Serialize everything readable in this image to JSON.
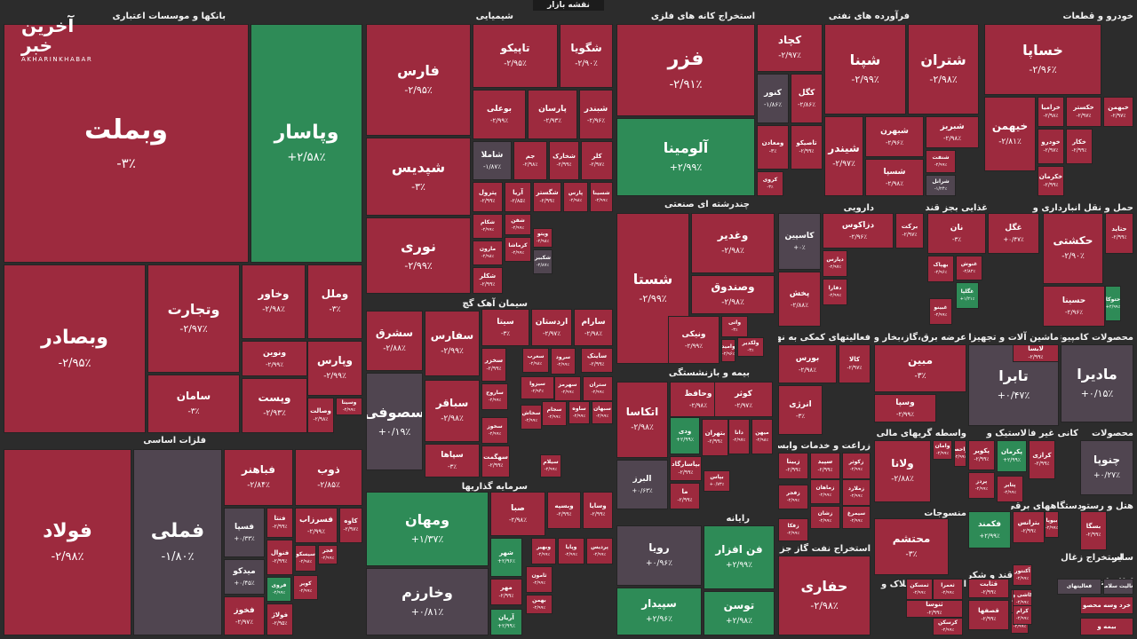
{
  "map_title": "نقشه بازار",
  "logo": {
    "main": "آخرین خبر",
    "sub": "AKHARINKHABAR"
  },
  "colors": {
    "neg": "#9d2a3e",
    "pos": "#2e8b57",
    "neutral": "#504550",
    "bg": "#2c2c2c"
  },
  "sectors": [
    {
      "id": "banks",
      "title": "بانکها و موسسات اعتباری"
    },
    {
      "id": "chem",
      "title": "شیمیایی"
    },
    {
      "id": "metalore",
      "title": "استخراج کانه های فلزی"
    },
    {
      "id": "oil",
      "title": "فرآورده های نفتی"
    },
    {
      "id": "auto",
      "title": "خودرو و قطعات"
    },
    {
      "id": "basicmetals",
      "title": "فلزات اساسی"
    },
    {
      "id": "multi",
      "title": "چندرشته ای صنعتی"
    },
    {
      "id": "pharma",
      "title": "دارویی"
    },
    {
      "id": "food",
      "title": "غذایی بجز قند وشکر"
    },
    {
      "id": "transport",
      "title": "حمل و نقل انبارداری و"
    },
    {
      "id": "cement",
      "title": "سیمان آهک گچ"
    },
    {
      "id": "finaid",
      "title": "فعالیتهای کمکی به نهاد های"
    },
    {
      "id": "utility",
      "title": "عرضه برق،گاز،بخار و آب گرم"
    },
    {
      "id": "machinery",
      "title": "ماشین آلات و تجهیزات"
    },
    {
      "id": "computer",
      "title": "محصولات کامپیوتری"
    },
    {
      "id": "insurance",
      "title": "بیمه و بازنشستگی"
    },
    {
      "id": "invest",
      "title": "سرمایه گذاریها"
    },
    {
      "id": "services",
      "title": "زراعت و خدمات وابسته"
    },
    {
      "id": "brokers",
      "title": "واسطه گریهای مالی و پولی"
    },
    {
      "id": "tire",
      "title": "لاستیک و"
    },
    {
      "id": "nonmetal",
      "title": "کانی غیر فلزی"
    },
    {
      "id": "products",
      "title": "محصولات"
    },
    {
      "id": "textile",
      "title": "منسوجات"
    },
    {
      "id": "electric",
      "title": "دستگاههای برقی"
    },
    {
      "id": "hotel",
      "title": "هتل و رستوران"
    },
    {
      "id": "it",
      "title": "رایانه"
    },
    {
      "id": "oilgas",
      "title": "استخراج نفت گاز جز اکتشاف"
    },
    {
      "id": "mass",
      "title": "انبوه سازی املاک و"
    },
    {
      "id": "sugar",
      "title": "قند و شکر"
    },
    {
      "id": "coal",
      "title": "استخراج زغال"
    },
    {
      "id": "telecom",
      "title": "اطلاعات و"
    },
    {
      "id": "misc",
      "title": "سایر"
    }
  ],
  "stocks": [
    {
      "name": "وبملت",
      "change": "-۳٪"
    },
    {
      "name": "وپاسار",
      "change": "+۲/۵۸٪"
    },
    {
      "name": "وبصادر",
      "change": "-۲/۹۵٪"
    },
    {
      "name": "وتجارت",
      "change": "-۲/۹۷٪"
    },
    {
      "name": "وخاور",
      "change": "-۲/۹۸٪"
    },
    {
      "name": "وملل",
      "change": "-۳٪"
    },
    {
      "name": "ونوین",
      "change": "-۲/۹۹٪"
    },
    {
      "name": "وپارس",
      "change": "-۲/۹۹٪"
    },
    {
      "name": "سامان",
      "change": "-۳٪"
    },
    {
      "name": "وپست",
      "change": "-۲/۹۳٪"
    },
    {
      "name": "وسینا",
      "change": "-۲/۹۹٪"
    },
    {
      "name": "وصالت",
      "change": "-۲/۹۸٪"
    },
    {
      "name": "فارس",
      "change": "-۲/۹۵٪"
    },
    {
      "name": "تاپیکو",
      "change": "-۲/۹۵٪"
    },
    {
      "name": "شگویا",
      "change": "-۲/۹۰٪"
    },
    {
      "name": "شپدیس",
      "change": "-۳٪"
    },
    {
      "name": "نوری",
      "change": "-۲/۹۹٪"
    },
    {
      "name": "بوعلی",
      "change": "-۲/۹۹٪"
    },
    {
      "name": "پارسان",
      "change": "-۲/۹۳٪"
    },
    {
      "name": "شبندر",
      "change": "-۲/۹۶٪"
    },
    {
      "name": "شاملا",
      "change": "-۱/۸۷٪"
    },
    {
      "name": "جم",
      "change": "-۲/۹۸٪"
    },
    {
      "name": "شخارک",
      "change": "-۲/۹۹٪"
    },
    {
      "name": "کلر",
      "change": "-۲/۹۷٪"
    },
    {
      "name": "پترول",
      "change": "-۲/۹۹٪"
    },
    {
      "name": "آریا",
      "change": "-۲/۸۵٪"
    },
    {
      "name": "شگستر",
      "change": "-۲/۹۹٪"
    },
    {
      "name": "پارس",
      "change": "-۲/۹۸٪"
    },
    {
      "name": "شسینا",
      "change": "-۲/۹۹٪"
    },
    {
      "name": "شکام",
      "change": "-۲/۹۹٪"
    },
    {
      "name": "شفن",
      "change": "-۲/۹۹٪"
    },
    {
      "name": "مارون",
      "change": "-۲/۹۸٪"
    },
    {
      "name": "کرماشا",
      "change": "-۲/۹۹٪"
    },
    {
      "name": "شکلر",
      "change": "-۲/۹۹٪"
    },
    {
      "name": "ویتو",
      "change": "-۲/۹۸٪"
    },
    {
      "name": "شکبیر",
      "change": "-۲/۸۷٪"
    },
    {
      "name": "فزر",
      "change": "-۲/۹۱٪"
    },
    {
      "name": "کچاد",
      "change": "-۲/۹۷٪"
    },
    {
      "name": "کنور",
      "change": "-۱/۸۶٪"
    },
    {
      "name": "کگل",
      "change": "-۲/۸۶٪"
    },
    {
      "name": "آلومینا",
      "change": "+۲/۹۹٪"
    },
    {
      "name": "ومعادن",
      "change": "-۳٪"
    },
    {
      "name": "تاصیکو",
      "change": "-۲/۹۹٪"
    },
    {
      "name": "کروی",
      "change": "-۳٪"
    },
    {
      "name": "شپنا",
      "change": "-۲/۹۹٪"
    },
    {
      "name": "شتران",
      "change": "-۲/۹۸٪"
    },
    {
      "name": "شبهرن",
      "change": "-۲/۹۶٪"
    },
    {
      "name": "شبریز",
      "change": "-۲/۹۸٪"
    },
    {
      "name": "شیندر",
      "change": "-۲/۹۷٪"
    },
    {
      "name": "شسپا",
      "change": "-۲/۹۸٪"
    },
    {
      "name": "شنفت",
      "change": "-۲/۹۹٪"
    },
    {
      "name": "شرانل",
      "change": "-۱/۲۴٪"
    },
    {
      "name": "خساپا",
      "change": "-۲/۹۶٪"
    },
    {
      "name": "خیهمن",
      "change": "-۲/۸۱٪"
    },
    {
      "name": "خرامیا",
      "change": "-۲/۹۸٪"
    },
    {
      "name": "خکستر",
      "change": "-۲/۹۷٪"
    },
    {
      "name": "خبهمن",
      "change": "-۲/۹۷٪"
    },
    {
      "name": "خودرو",
      "change": "-۲/۹۷٪"
    },
    {
      "name": "خکار",
      "change": "-۲/۹۹٪"
    },
    {
      "name": "خکرمان",
      "change": "-۲/۹۹٪"
    },
    {
      "name": "فولاد",
      "change": "-۲/۹۸٪"
    },
    {
      "name": "فملی",
      "change": "-۱/۸۰٪"
    },
    {
      "name": "فباهنر",
      "change": "-۲/۸۴٪"
    },
    {
      "name": "ذوب",
      "change": "-۲/۸۵٪"
    },
    {
      "name": "فسپا",
      "change": "+۰/۳۳٪"
    },
    {
      "name": "فنتا",
      "change": "-۲/۹۹٪"
    },
    {
      "name": "فسرزاب",
      "change": "-۲/۹۹٪"
    },
    {
      "name": "فسبزوار",
      "change": "-۲/۹۷٪"
    },
    {
      "name": "کاوه",
      "change": "-۲/۹۷٪"
    },
    {
      "name": "میدکو",
      "change": "+۰/۴۵٪"
    },
    {
      "name": "فجر",
      "change": "-۲/۹۹٪"
    },
    {
      "name": "فنوال",
      "change": "-۲/۹۹٪"
    },
    {
      "name": "فخوز",
      "change": "-۲/۹۷٪"
    },
    {
      "name": "فولاژ",
      "change": "-۲/۹۵٪"
    },
    {
      "name": "فروی",
      "change": "-۲/۹۹٪"
    },
    {
      "name": "کویر",
      "change": "-۲/۹۹٪"
    },
    {
      "name": "سیسکو",
      "change": "-۲/۹۸٪"
    },
    {
      "name": "شستا",
      "change": "-۲/۹۹٪"
    },
    {
      "name": "وغدیر",
      "change": "-۲/۹۸٪"
    },
    {
      "name": "وصندوق",
      "change": "-۲/۹۸٪"
    },
    {
      "name": "ونیکی",
      "change": "-۲/۹۹٪"
    },
    {
      "name": "واتی",
      "change": "-۳٪"
    },
    {
      "name": "ولکدیر",
      "change": "-۳٪"
    },
    {
      "name": "وامید",
      "change": "-۲/۹۶٪"
    },
    {
      "name": "کاسپین",
      "change": "+۰٪"
    },
    {
      "name": "پخش",
      "change": "-۲/۸۸٪"
    },
    {
      "name": "دزاکوس",
      "change": "-۲/۹۶٪"
    },
    {
      "name": "برکت",
      "change": "-۲/۹۷٪"
    },
    {
      "name": "دپارس",
      "change": "-۲/۹۷٪"
    },
    {
      "name": "دفارا",
      "change": "-۲/۹۹٪"
    },
    {
      "name": "نان",
      "change": "-۳٪"
    },
    {
      "name": "غگل",
      "change": "+۰/۴۷٪"
    },
    {
      "name": "بهپاک",
      "change": "-۲/۹۶٪"
    },
    {
      "name": "غنوش",
      "change": "-۲/۸۲٪"
    },
    {
      "name": "غگلپا",
      "change": "+۱/۲۱٪"
    },
    {
      "name": "غبینو",
      "change": "-۲/۹۹٪"
    },
    {
      "name": "حکشتی",
      "change": "-۲/۹۰٪"
    },
    {
      "name": "حتاید",
      "change": "-۲/۹۹٪"
    },
    {
      "name": "حسینا",
      "change": "-۲/۹۶٪"
    },
    {
      "name": "حتوکا",
      "change": "+۲/۹۹٪"
    },
    {
      "name": "سیتا",
      "change": "-۳٪"
    },
    {
      "name": "اردستان",
      "change": "-۲/۹۷٪"
    },
    {
      "name": "سارام",
      "change": "-۲/۹۸٪"
    },
    {
      "name": "سشرق",
      "change": "-۲/۸۸٪"
    },
    {
      "name": "سفارس",
      "change": "-۲/۹۹٪"
    },
    {
      "name": "سخزر",
      "change": "-۲/۹۹٪"
    },
    {
      "name": "سغرب",
      "change": "-۲/۹۸٪"
    },
    {
      "name": "سرود",
      "change": "-۲/۹۹٪"
    },
    {
      "name": "ساینک",
      "change": "-۲/۹۹٪"
    },
    {
      "name": "سصوفی",
      "change": "+۰/۱۹٪"
    },
    {
      "name": "سباقر",
      "change": "-۲/۹۸٪"
    },
    {
      "name": "ساروج",
      "change": "-۲/۹۹٪"
    },
    {
      "name": "سیزوا",
      "change": "-۲/۹۴٪"
    },
    {
      "name": "سهرمز",
      "change": "-۲/۹۹٪"
    },
    {
      "name": "ستران",
      "change": "-۲/۹۹٪"
    },
    {
      "name": "سخوز",
      "change": "-۲/۹۹٪"
    },
    {
      "name": "سجام",
      "change": "-۲/۹۹٪"
    },
    {
      "name": "ساوه",
      "change": "-۲/۹۹٪"
    },
    {
      "name": "سبهان",
      "change": "-۲/۹۹٪"
    },
    {
      "name": "سپاها",
      "change": "-۳٪"
    },
    {
      "name": "سهگمت",
      "change": "-۲/۹۹٪"
    },
    {
      "name": "سخاش",
      "change": "-۲/۹۹٪"
    },
    {
      "name": "سیلام",
      "change": "-۲/۹۹٪"
    },
    {
      "name": "بورس",
      "change": "-۲/۹۸٪"
    },
    {
      "name": "کالا",
      "change": "-۲/۹۷٪"
    },
    {
      "name": "انرژی",
      "change": "-۳٪"
    },
    {
      "name": "مبین",
      "change": "-۳٪"
    },
    {
      "name": "وسپا",
      "change": "-۲/۹۹٪"
    },
    {
      "name": "تابرا",
      "change": "+۰/۴۷٪"
    },
    {
      "name": "لابسا",
      "change": "-۲/۹۹٪"
    },
    {
      "name": "مادیرا",
      "change": "+۰/۱۵٪"
    },
    {
      "name": "اتکاسا",
      "change": "-۲/۹۸٪"
    },
    {
      "name": "وحافظ",
      "change": "-۲/۹۸٪"
    },
    {
      "name": "کوثر",
      "change": "-۲/۹۷٪"
    },
    {
      "name": "بتهران",
      "change": "-۲/۹۹٪"
    },
    {
      "name": "دانا",
      "change": "-۲/۹۷٪"
    },
    {
      "name": "میهن",
      "change": "-۲/۹۸٪"
    },
    {
      "name": "ودی",
      "change": "+۲/۹۹٪"
    },
    {
      "name": "بپاسارگاد",
      "change": "-۲/۹۹٪"
    },
    {
      "name": "البرز",
      "change": "+۰/۶۳٪"
    },
    {
      "name": "ما",
      "change": "-۲/۹۹٪"
    },
    {
      "name": "بپاس",
      "change": "+۰/۷۳٪"
    },
    {
      "name": "ومهان",
      "change": "+۱/۳۷٪"
    },
    {
      "name": "وخارزم",
      "change": "+۰/۸۱٪"
    },
    {
      "name": "صبا",
      "change": "-۲/۹۸٪"
    },
    {
      "name": "وبسپه",
      "change": "-۲/۹۹٪"
    },
    {
      "name": "وسایا",
      "change": "-۲/۹۹٪"
    },
    {
      "name": "شهر",
      "change": "+۲/۹۶٪"
    },
    {
      "name": "وبهیر",
      "change": "-۲/۹۹٪"
    },
    {
      "name": "وپایا",
      "change": "-۲/۹۹٪"
    },
    {
      "name": "پردیس",
      "change": "-۲/۹۹٪"
    },
    {
      "name": "مهر",
      "change": "-۲/۹۹٪"
    },
    {
      "name": "ثامون",
      "change": "-۲/۹۹٪"
    },
    {
      "name": "بهمن",
      "change": "-۲/۹۹٪"
    },
    {
      "name": "آریان",
      "change": "+۲/۹۹٪"
    },
    {
      "name": "رویا",
      "change": "+۰/۹۶٪"
    },
    {
      "name": "فن افزار",
      "change": "+۲/۹۹٪"
    },
    {
      "name": "سپیدار",
      "change": "+۲/۹۶٪"
    },
    {
      "name": "توسن",
      "change": "+۲/۹۸٪"
    },
    {
      "name": "حفاری",
      "change": "-۲/۹۸٪"
    },
    {
      "name": "زبینا",
      "change": "-۲/۹۹٪"
    },
    {
      "name": "سپید",
      "change": "-۲/۹۹٪"
    },
    {
      "name": "زکوثر",
      "change": "-۲/۹۹٪"
    },
    {
      "name": "زماهان",
      "change": "-۲/۹۹٪"
    },
    {
      "name": "زملارد",
      "change": "-۲/۹۹٪"
    },
    {
      "name": "زفجر",
      "change": "-۲/۹۹٪"
    },
    {
      "name": "سیمرغ",
      "change": "-۲/۹۹٪"
    },
    {
      "name": "زشان",
      "change": "-۲/۹۹٪"
    },
    {
      "name": "زفکا",
      "change": "-۲/۹۹٪"
    },
    {
      "name": "ولانا",
      "change": "-۲/۸۸٪"
    },
    {
      "name": "وامان",
      "change": "-۲/۹۹٪"
    },
    {
      "name": "واحصا",
      "change": "-۲/۹۹٪"
    },
    {
      "name": "پکویر",
      "change": "-۲/۹۹٪"
    },
    {
      "name": "پکرمان",
      "change": "+۲/۹۹٪"
    },
    {
      "name": "کرازی",
      "change": "-۲/۹۹٪"
    },
    {
      "name": "پردز",
      "change": "-۲/۹۹٪"
    },
    {
      "name": "پتایر",
      "change": "-۲/۹۹٪"
    },
    {
      "name": "چنوپا",
      "change": "+۰/۲۷٪"
    },
    {
      "name": "محتشم",
      "change": "-۳٪"
    },
    {
      "name": "فکمند",
      "change": "+۲/۹۹٪"
    },
    {
      "name": "بترانس",
      "change": "-۲/۹۹٪"
    },
    {
      "name": "بیوپا",
      "change": "-۲/۹۹٪"
    },
    {
      "name": "بسگا",
      "change": "-۲/۹۹٪"
    },
    {
      "name": "قثابت",
      "change": "-۲/۹۹٪"
    },
    {
      "name": "قصفها",
      "change": "-۲/۹۹٪"
    },
    {
      "name": "قشکر",
      "change": "-۲/۹۹٪"
    },
    {
      "name": "ثمسکن",
      "change": "-۲/۹۹٪"
    },
    {
      "name": "ثعمرا",
      "change": "-۲/۹۹٪"
    },
    {
      "name": "ثنوسا",
      "change": "-۲/۹۹٪"
    },
    {
      "name": "کرسکن",
      "change": "-۲/۹۹٪"
    },
    {
      "name": "آکنتور",
      "change": "-۲/۹۹٪"
    },
    {
      "name": "ثتران",
      "change": "-۲/۹۹٪"
    },
    {
      "name": "کاشی و",
      "change": "-۲/۹۹٪"
    },
    {
      "name": "کرام",
      "change": "-۲/۹۹٪"
    },
    {
      "name": "فعالیتهای",
      "change": ""
    },
    {
      "name": "فعالیت سلامت",
      "change": ""
    },
    {
      "name": "خرد وسه محصو",
      "change": ""
    },
    {
      "name": "بیمه و",
      "change": ""
    }
  ]
}
